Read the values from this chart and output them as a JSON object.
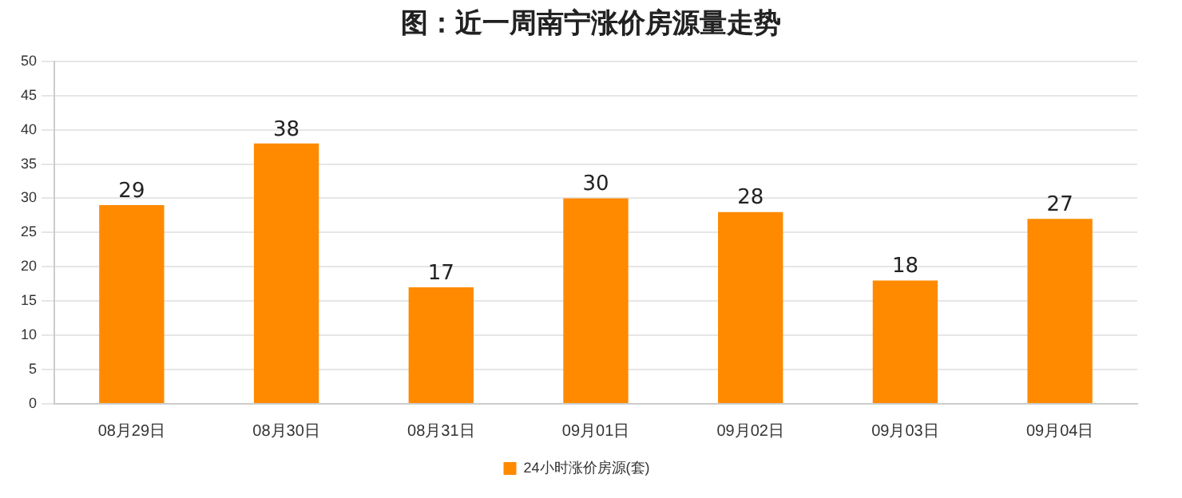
{
  "chart_data": {
    "type": "bar",
    "title": "图：近一周南宁涨价房源量走势",
    "categories": [
      "08月29日",
      "08月30日",
      "08月31日",
      "09月01日",
      "09月02日",
      "09月03日",
      "09月04日"
    ],
    "series": [
      {
        "name": "24小时涨价房源(套)",
        "color": "#ff8a00",
        "values": [
          29,
          38,
          17,
          30,
          28,
          18,
          27
        ]
      }
    ],
    "ylim": [
      0,
      50
    ],
    "yticks": [
      0,
      5,
      10,
      15,
      20,
      25,
      30,
      35,
      40,
      45,
      50
    ],
    "grid": "y",
    "legend": "bottom",
    "data_labels": true
  }
}
